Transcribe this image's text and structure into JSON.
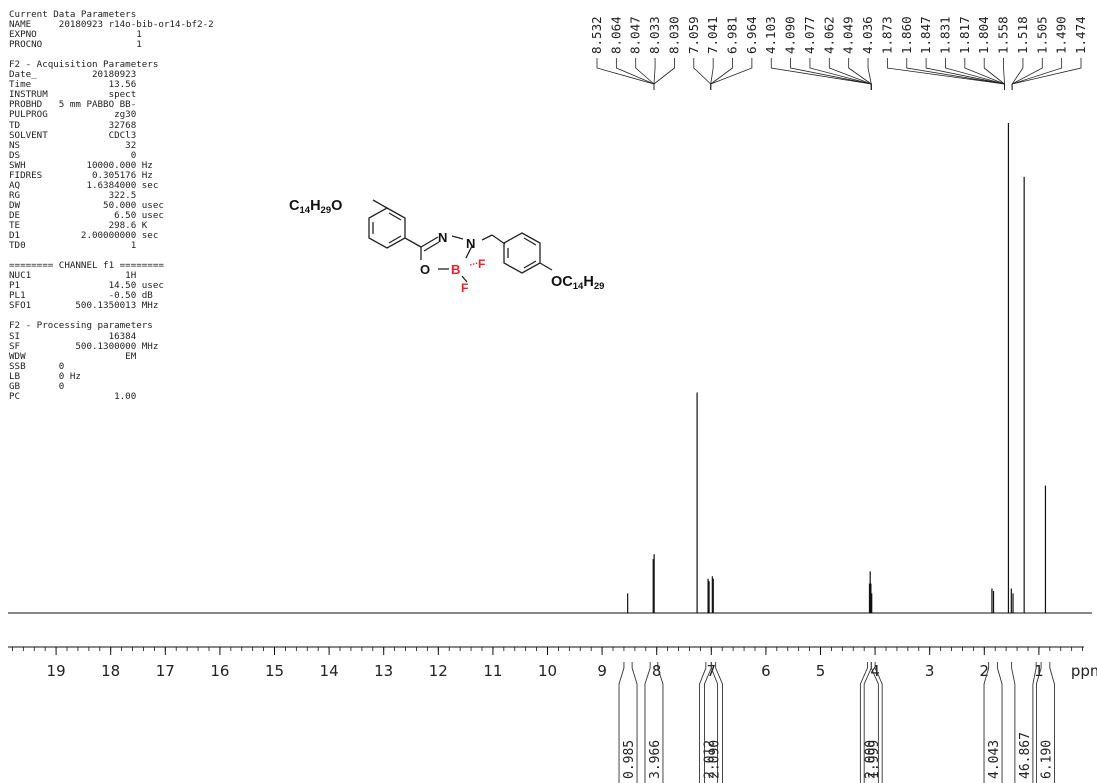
{
  "params": {
    "current": [
      "Current Data Parameters",
      "NAME     20180923 r14o-bib-or14-bf2-2",
      "EXPNO                  1",
      "PROCNO                 1"
    ],
    "acquisition": [
      "F2 - Acquisition Parameters",
      "Date_          20180923",
      "Time              13.56",
      "INSTRUM           spect",
      "PROBHD   5 mm PABBO BB-",
      "PULPROG            zg30",
      "TD                32768",
      "SOLVENT           CDCl3",
      "NS                   32",
      "DS                    0",
      "SWH           10000.000 Hz",
      "FIDRES         0.305176 Hz",
      "AQ            1.6384000 sec",
      "RG                322.5",
      "DW               50.000 usec",
      "DE                 6.50 usec",
      "TE                298.6 K",
      "D1           2.00000000 sec",
      "TD0                   1"
    ],
    "channel": [
      "======== CHANNEL f1 ========",
      "NUC1                 1H",
      "P1                14.50 usec",
      "PL1               -0.50 dB",
      "SFO1        500.1350013 MHz"
    ],
    "processing": [
      "F2 - Processing parameters",
      "SI                16384",
      "SF          500.1300000 MHz",
      "WDW                  EM",
      "SSB      0",
      "LB       0 Hz",
      "GB       0",
      "PC                 1.00"
    ]
  },
  "structure": {
    "left_chain_base": "C",
    "left_chain_sub1": "14",
    "left_chain_mid": "H",
    "left_chain_sub2": "29",
    "left_chain_end": "O",
    "right_chain_base": "OC",
    "right_chain_sub1": "14",
    "right_chain_mid": "H",
    "right_chain_sub2": "29",
    "atom_n1": "N",
    "atom_n2": "N",
    "atom_o": "O",
    "atom_b": "B",
    "atom_f1": "F",
    "atom_f2": "F",
    "heteroatom_color": "#e8202a"
  },
  "chart_data": {
    "type": "line",
    "title": "",
    "xlabel": "ppm",
    "ylabel": "",
    "x_axis_reversed": true,
    "xlim": [
      20,
      0
    ],
    "major_ticks": [
      19,
      18,
      17,
      16,
      15,
      14,
      13,
      12,
      11,
      10,
      9,
      8,
      7,
      6,
      5,
      4,
      3,
      2,
      1
    ],
    "minor_tick_step": 0.2,
    "peak_labels": [
      "8.532",
      "8.064",
      "8.047",
      "8.033",
      "8.030",
      "7.059",
      "7.041",
      "6.981",
      "6.964",
      "4.103",
      "4.090",
      "4.077",
      "4.062",
      "4.049",
      "4.036",
      "1.873",
      "1.860",
      "1.847",
      "1.831",
      "1.817",
      "1.804",
      "1.558",
      "1.518",
      "1.505",
      "1.490",
      "1.474"
    ],
    "peak_label_groups": [
      {
        "labels": [
          "8.532",
          "8.064",
          "8.047",
          "8.033",
          "8.030"
        ],
        "target_ppm": 8.05
      },
      {
        "labels": [
          "7.059",
          "7.041",
          "6.981",
          "6.964"
        ],
        "target_ppm": 7.01
      },
      {
        "labels": [
          "4.103",
          "4.090",
          "4.077",
          "4.062",
          "4.049",
          "4.036"
        ],
        "target_ppm": 4.07
      },
      {
        "labels": [
          "1.873",
          "1.860",
          "1.847",
          "1.831",
          "1.817",
          "1.804",
          "1.558"
        ],
        "target_ppm": 1.63
      },
      {
        "labels": [
          "1.518",
          "1.505",
          "1.490",
          "1.474"
        ],
        "target_ppm": 1.49
      }
    ],
    "peaks": [
      {
        "ppm": 8.532,
        "height": 0.04
      },
      {
        "ppm": 8.064,
        "height": 0.11
      },
      {
        "ppm": 8.047,
        "height": 0.12
      },
      {
        "ppm": 7.26,
        "height": 0.45
      },
      {
        "ppm": 7.059,
        "height": 0.07
      },
      {
        "ppm": 7.041,
        "height": 0.065
      },
      {
        "ppm": 6.981,
        "height": 0.075
      },
      {
        "ppm": 6.964,
        "height": 0.07
      },
      {
        "ppm": 4.103,
        "height": 0.06
      },
      {
        "ppm": 4.09,
        "height": 0.085
      },
      {
        "ppm": 4.077,
        "height": 0.06
      },
      {
        "ppm": 4.062,
        "height": 0.04
      },
      {
        "ppm": 1.86,
        "height": 0.05
      },
      {
        "ppm": 1.831,
        "height": 0.045
      },
      {
        "ppm": 1.558,
        "height": 1.0
      },
      {
        "ppm": 1.505,
        "height": 0.05
      },
      {
        "ppm": 1.474,
        "height": 0.04
      },
      {
        "ppm": 1.27,
        "height": 0.89
      },
      {
        "ppm": 0.88,
        "height": 0.26
      }
    ],
    "integrals": [
      {
        "from": 8.6,
        "to": 8.45,
        "value": "0.985"
      },
      {
        "from": 8.12,
        "to": 7.98,
        "value": "3.966"
      },
      {
        "from": 7.1,
        "to": 7.0,
        "value": "2.012"
      },
      {
        "from": 7.0,
        "to": 6.92,
        "value": "2.090"
      },
      {
        "from": 4.14,
        "to": 4.07,
        "value": "2.000"
      },
      {
        "from": 4.07,
        "to": 4.0,
        "value": "1.999"
      },
      {
        "from": 1.92,
        "to": 1.76,
        "value": "4.043"
      },
      {
        "from": 1.5,
        "to": 1.05,
        "value": "46.867"
      },
      {
        "from": 0.96,
        "to": 0.8,
        "value": "6.190"
      }
    ]
  }
}
